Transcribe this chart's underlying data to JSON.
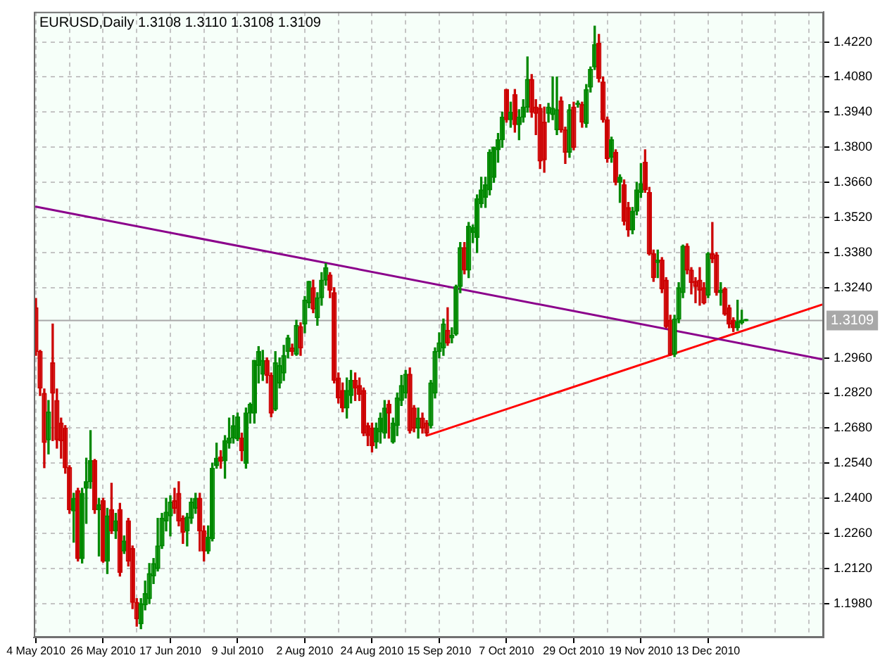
{
  "chart_data": {
    "type": "candlestick",
    "title": "EURUSD,Daily 1.3108 1.3110 1.3108 1.3109",
    "categories": [
      "4 May 2010",
      null,
      null,
      null,
      null,
      null,
      null,
      null,
      null,
      null,
      null,
      null,
      null,
      null,
      null,
      null,
      "26 May 2010",
      null,
      null,
      null,
      null,
      null,
      null,
      null,
      null,
      null,
      null,
      null,
      null,
      null,
      null,
      null,
      "17 Jun 2010",
      null,
      null,
      null,
      null,
      null,
      null,
      null,
      null,
      null,
      null,
      null,
      null,
      null,
      null,
      null,
      "9 Jul 2010",
      null,
      null,
      null,
      null,
      null,
      null,
      null,
      null,
      null,
      null,
      null,
      null,
      null,
      null,
      null,
      "2 Aug 2010",
      null,
      null,
      null,
      null,
      null,
      null,
      null,
      null,
      null,
      null,
      null,
      null,
      null,
      null,
      null,
      "24 Aug 2010",
      null,
      null,
      null,
      null,
      null,
      null,
      null,
      null,
      null,
      null,
      null,
      null,
      null,
      null,
      null,
      "15 Sep 2010",
      null,
      null,
      null,
      null,
      null,
      null,
      null,
      null,
      null,
      null,
      null,
      null,
      null,
      null,
      null,
      "7 Oct 2010",
      null,
      null,
      null,
      null,
      null,
      null,
      null,
      null,
      null,
      null,
      null,
      null,
      null,
      null,
      null,
      "29 Oct 2010",
      null,
      null,
      null,
      null,
      null,
      null,
      null,
      null,
      null,
      null,
      null,
      null,
      null,
      null,
      null,
      "19 Nov 2010",
      null,
      null,
      null,
      null,
      null,
      null,
      null,
      null,
      null,
      null,
      null,
      null,
      null,
      null,
      null,
      "13 Dec 2010",
      null,
      null,
      null,
      null,
      null,
      null,
      null,
      null,
      null,
      null,
      null,
      null,
      null,
      null,
      null,
      null,
      null,
      null,
      null,
      null,
      null,
      null,
      null,
      null,
      null,
      null,
      null
    ],
    "ohlc": [
      [
        1.316,
        1.3197,
        1.297,
        1.2985
      ],
      [
        1.2985,
        1.299,
        1.281,
        1.284
      ],
      [
        1.2818,
        1.2836,
        1.2522,
        1.2623
      ],
      [
        1.2633,
        1.279,
        1.2577,
        1.2744
      ],
      [
        1.294,
        1.3095,
        1.263,
        1.282
      ],
      [
        1.279,
        1.2836,
        1.26,
        1.2633
      ],
      [
        1.27,
        1.272,
        1.256,
        1.263
      ],
      [
        1.268,
        1.269,
        1.25,
        1.2522
      ],
      [
        1.2522,
        1.253,
        1.234,
        1.2355
      ],
      [
        1.235,
        1.242,
        1.2225,
        1.24
      ],
      [
        1.243,
        1.244,
        1.215,
        1.216
      ],
      [
        1.216,
        1.244,
        1.2142,
        1.242
      ],
      [
        1.244,
        1.256,
        1.23,
        1.2466
      ],
      [
        1.2466,
        1.267,
        1.244,
        1.255
      ],
      [
        1.255,
        1.2555,
        1.234,
        1.2355
      ],
      [
        1.2355,
        1.24,
        1.217,
        1.2375
      ],
      [
        1.239,
        1.24,
        1.2145,
        1.215
      ],
      [
        1.215,
        1.236,
        1.21,
        1.233
      ],
      [
        1.2355,
        1.246,
        1.226,
        1.227
      ],
      [
        1.227,
        1.234,
        1.224,
        1.231
      ],
      [
        1.2355,
        1.238,
        1.209,
        1.2105
      ],
      [
        1.219,
        1.225,
        1.218,
        1.223
      ],
      [
        1.231,
        1.232,
        1.213,
        1.215
      ],
      [
        1.22,
        1.221,
        1.196,
        1.1985
      ],
      [
        1.1985,
        1.2,
        1.189,
        1.192
      ],
      [
        1.19,
        1.2,
        1.188,
        1.198
      ],
      [
        1.1975,
        1.207,
        1.1955,
        1.202
      ],
      [
        1.2,
        1.214,
        1.198,
        1.21
      ],
      [
        1.209,
        1.216,
        1.206,
        1.214
      ],
      [
        1.212,
        1.232,
        1.211,
        1.221
      ],
      [
        1.221,
        1.234,
        1.22,
        1.232
      ],
      [
        1.231,
        1.24,
        1.227,
        1.2345
      ],
      [
        1.233,
        1.241,
        1.225,
        1.2385
      ],
      [
        1.239,
        1.244,
        1.234,
        1.236
      ],
      [
        1.242,
        1.2466,
        1.229,
        1.231
      ],
      [
        1.232,
        1.233,
        1.222,
        1.2265
      ],
      [
        1.227,
        1.234,
        1.221,
        1.2325
      ],
      [
        1.232,
        1.24,
        1.23,
        1.2385
      ],
      [
        1.236,
        1.242,
        1.234,
        1.24
      ],
      [
        1.24,
        1.242,
        1.219,
        1.227
      ],
      [
        1.227,
        1.229,
        1.215,
        1.219
      ],
      [
        1.219,
        1.229,
        1.218,
        1.2245
      ],
      [
        1.224,
        1.254,
        1.223,
        1.252
      ],
      [
        1.253,
        1.262,
        1.252,
        1.256
      ],
      [
        1.2565,
        1.259,
        1.252,
        1.2548
      ],
      [
        1.255,
        1.265,
        1.248,
        1.263
      ],
      [
        1.262,
        1.272,
        1.26,
        1.264
      ],
      [
        1.264,
        1.273,
        1.262,
        1.269
      ],
      [
        1.2637,
        1.274,
        1.263,
        1.2725
      ],
      [
        1.264,
        1.266,
        1.255,
        1.259
      ],
      [
        1.254,
        1.276,
        1.252,
        1.274
      ],
      [
        1.274,
        1.278,
        1.27,
        1.2775
      ],
      [
        1.274,
        1.295,
        1.27,
        1.295
      ],
      [
        1.293,
        1.3005,
        1.286,
        1.2985
      ],
      [
        1.2895,
        1.299,
        1.287,
        1.295
      ],
      [
        1.295,
        1.296,
        1.286,
        1.289
      ],
      [
        1.289,
        1.29,
        1.2725,
        1.274
      ],
      [
        1.2755,
        1.2985,
        1.275,
        1.294
      ],
      [
        1.286,
        1.296,
        1.284,
        1.293
      ],
      [
        1.29,
        1.301,
        1.287,
        1.297
      ],
      [
        1.2985,
        1.305,
        1.296,
        1.304
      ],
      [
        1.3,
        1.3015,
        1.297,
        1.2985
      ],
      [
        1.2975,
        1.311,
        1.297,
        1.309
      ],
      [
        1.3085,
        1.31,
        1.297,
        1.3
      ],
      [
        1.3095,
        1.3205,
        1.306,
        1.319
      ],
      [
        1.318,
        1.3265,
        1.316,
        1.3265
      ],
      [
        1.324,
        1.327,
        1.314,
        1.3155
      ],
      [
        1.312,
        1.322,
        1.309,
        1.32
      ],
      [
        1.32,
        1.33,
        1.317,
        1.327
      ],
      [
        1.327,
        1.3336,
        1.325,
        1.332
      ],
      [
        1.329,
        1.33,
        1.32,
        1.323
      ],
      [
        1.322,
        1.324,
        1.286,
        1.287
      ],
      [
        1.288,
        1.29,
        1.278,
        1.28
      ],
      [
        1.283,
        1.286,
        1.2745,
        1.276
      ],
      [
        1.276,
        1.288,
        1.272,
        1.283
      ],
      [
        1.281,
        1.291,
        1.278,
        1.287
      ],
      [
        1.287,
        1.29,
        1.279,
        1.284
      ],
      [
        1.285,
        1.288,
        1.279,
        1.2815
      ],
      [
        1.283,
        1.284,
        1.265,
        1.266
      ],
      [
        1.269,
        1.27,
        1.261,
        1.265
      ],
      [
        1.268,
        1.27,
        1.2585,
        1.261
      ],
      [
        1.2625,
        1.27,
        1.26,
        1.268
      ],
      [
        1.2665,
        1.274,
        1.262,
        1.272
      ],
      [
        1.266,
        1.279,
        1.264,
        1.276
      ],
      [
        1.2775,
        1.279,
        1.264,
        1.274
      ],
      [
        1.2625,
        1.272,
        1.262,
        1.27
      ],
      [
        1.269,
        1.282,
        1.265,
        1.28
      ],
      [
        1.279,
        1.289,
        1.277,
        1.285
      ],
      [
        1.282,
        1.291,
        1.28,
        1.2895
      ],
      [
        1.2895,
        1.292,
        1.266,
        1.267
      ],
      [
        1.276,
        1.277,
        1.2665,
        1.268
      ],
      [
        1.268,
        1.276,
        1.264,
        1.272
      ],
      [
        1.272,
        1.274,
        1.266,
        1.268
      ],
      [
        1.27,
        1.271,
        1.265,
        1.266
      ],
      [
        1.269,
        1.287,
        1.268,
        1.286
      ],
      [
        1.282,
        1.3,
        1.28,
        1.2985
      ],
      [
        1.2985,
        1.306,
        1.296,
        1.302
      ],
      [
        1.3,
        1.3115,
        1.297,
        1.3095
      ],
      [
        1.307,
        1.316,
        1.301,
        1.302
      ],
      [
        1.304,
        1.308,
        1.302,
        1.305
      ],
      [
        1.3055,
        1.325,
        1.305,
        1.3245
      ],
      [
        1.3245,
        1.342,
        1.322,
        1.34
      ],
      [
        1.34,
        1.342,
        1.3295,
        1.331
      ],
      [
        1.331,
        1.35,
        1.328,
        1.3485
      ],
      [
        1.346,
        1.349,
        1.342,
        1.348
      ],
      [
        1.344,
        1.361,
        1.338,
        1.3595
      ],
      [
        1.3575,
        1.368,
        1.356,
        1.363
      ],
      [
        1.36,
        1.368,
        1.356,
        1.365
      ],
      [
        1.363,
        1.379,
        1.361,
        1.378
      ],
      [
        1.368,
        1.38,
        1.366,
        1.38
      ],
      [
        1.379,
        1.3855,
        1.374,
        1.383
      ],
      [
        1.383,
        1.394,
        1.38,
        1.392
      ],
      [
        1.403,
        1.403,
        1.39,
        1.391
      ],
      [
        1.391,
        1.398,
        1.388,
        1.394
      ],
      [
        1.401,
        1.403,
        1.386,
        1.389
      ],
      [
        1.389,
        1.395,
        1.383,
        1.392
      ],
      [
        1.392,
        1.399,
        1.39,
        1.396
      ],
      [
        1.396,
        1.416,
        1.394,
        1.407
      ],
      [
        1.407,
        1.409,
        1.392,
        1.394
      ],
      [
        1.396,
        1.399,
        1.385,
        1.3935
      ],
      [
        1.3955,
        1.397,
        1.3715,
        1.3745
      ],
      [
        1.39,
        1.396,
        1.37,
        1.375
      ],
      [
        1.3935,
        1.3975,
        1.39,
        1.396
      ],
      [
        1.393,
        1.408,
        1.391,
        1.3955
      ],
      [
        1.387,
        1.408,
        1.385,
        1.395
      ],
      [
        1.3985,
        1.4,
        1.386,
        1.387
      ],
      [
        1.387,
        1.388,
        1.3735,
        1.378
      ],
      [
        1.378,
        1.397,
        1.376,
        1.395
      ],
      [
        1.396,
        1.398,
        1.379,
        1.38
      ],
      [
        1.397,
        1.3985,
        1.396,
        1.3975
      ],
      [
        1.397,
        1.398,
        1.388,
        1.39
      ],
      [
        1.3895,
        1.405,
        1.388,
        1.403
      ],
      [
        1.404,
        1.412,
        1.402,
        1.411
      ],
      [
        1.412,
        1.4283,
        1.411,
        1.421
      ],
      [
        1.4215,
        1.425,
        1.406,
        1.4075
      ],
      [
        1.406,
        1.408,
        1.39,
        1.391
      ],
      [
        1.391,
        1.392,
        1.374,
        1.3755
      ],
      [
        1.376,
        1.384,
        1.374,
        1.383
      ],
      [
        1.378,
        1.379,
        1.365,
        1.366
      ],
      [
        1.366,
        1.369,
        1.358,
        1.368
      ],
      [
        1.365,
        1.367,
        1.349,
        1.3505
      ],
      [
        1.356,
        1.358,
        1.3445,
        1.347
      ],
      [
        1.347,
        1.356,
        1.3455,
        1.3545
      ],
      [
        1.3545,
        1.366,
        1.353,
        1.363
      ],
      [
        1.362,
        1.3735,
        1.36,
        1.3655
      ],
      [
        1.374,
        1.379,
        1.362,
        1.363
      ],
      [
        1.362,
        1.364,
        1.337,
        1.3375
      ],
      [
        1.3375,
        1.339,
        1.3265,
        1.328
      ],
      [
        1.334,
        1.339,
        1.328,
        1.335
      ],
      [
        1.335,
        1.336,
        1.322,
        1.3235
      ],
      [
        1.327,
        1.328,
        1.308,
        1.3085
      ],
      [
        1.311,
        1.313,
        1.297,
        1.2975
      ],
      [
        1.2975,
        1.313,
        1.2965,
        1.3115
      ],
      [
        1.3115,
        1.326,
        1.31,
        1.324
      ],
      [
        1.322,
        1.341,
        1.32,
        1.3405
      ],
      [
        1.3405,
        1.3415,
        1.3295,
        1.331
      ],
      [
        1.331,
        1.332,
        1.3215,
        1.326
      ],
      [
        1.3265,
        1.328,
        1.318,
        1.3245
      ],
      [
        1.327,
        1.332,
        1.317,
        1.323
      ],
      [
        1.324,
        1.326,
        1.3175,
        1.318
      ],
      [
        1.321,
        1.338,
        1.32,
        1.3375
      ],
      [
        1.3375,
        1.35,
        1.334,
        1.3355
      ],
      [
        1.337,
        1.338,
        1.321,
        1.322
      ],
      [
        1.322,
        1.326,
        1.317,
        1.323
      ],
      [
        1.3235,
        1.324,
        1.313,
        1.3135
      ],
      [
        1.316,
        1.317,
        1.308,
        1.3095
      ],
      [
        1.311,
        1.312,
        1.3065,
        1.308
      ],
      [
        1.308,
        1.319,
        1.307,
        1.3105
      ],
      [
        1.31,
        1.315,
        1.3095,
        1.311
      ],
      [
        1.3108,
        1.311,
        1.3108,
        1.3109
      ],
      null,
      null,
      null,
      null,
      null,
      null,
      null,
      null,
      null,
      null,
      null,
      null,
      null,
      null,
      null,
      null,
      null,
      null
    ],
    "series": [
      {
        "type": "line",
        "color": "#8b008b",
        "values": [
          1.3563,
          null,
          null,
          null,
          null,
          null,
          null,
          null,
          null,
          null,
          null,
          null,
          null,
          null,
          null,
          null,
          null,
          null,
          null,
          null,
          null,
          null,
          null,
          null,
          null,
          null,
          null,
          null,
          null,
          null,
          null,
          null,
          null,
          null,
          null,
          null,
          null,
          null,
          null,
          null,
          null,
          null,
          null,
          null,
          null,
          null,
          null,
          null,
          null,
          null,
          null,
          null,
          null,
          null,
          null,
          null,
          null,
          null,
          null,
          null,
          null,
          null,
          null,
          null,
          null,
          null,
          null,
          null,
          null,
          null,
          null,
          null,
          null,
          null,
          null,
          null,
          null,
          null,
          null,
          null,
          null,
          null,
          null,
          null,
          null,
          null,
          null,
          null,
          null,
          null,
          null,
          null,
          null,
          null,
          null,
          null,
          null,
          null,
          null,
          null,
          null,
          null,
          null,
          null,
          null,
          null,
          null,
          null,
          null,
          null,
          null,
          null,
          null,
          null,
          null,
          null,
          null,
          null,
          null,
          null,
          null,
          null,
          null,
          null,
          null,
          null,
          null,
          null,
          null,
          null,
          null,
          null,
          null,
          null,
          null,
          null,
          null,
          null,
          null,
          null,
          null,
          null,
          null,
          null,
          null,
          null,
          null,
          null,
          null,
          null,
          null,
          null,
          null,
          null,
          null,
          null,
          null,
          null,
          null,
          null,
          null,
          null,
          null,
          null,
          null,
          null,
          null,
          null,
          null,
          null,
          null,
          null,
          null,
          null,
          null,
          null,
          null,
          null,
          null,
          null,
          null,
          null,
          null,
          null,
          null,
          null,
          null,
          1.2955
        ]
      },
      {
        "type": "line",
        "color": "#ff0000",
        "values": [
          null,
          null,
          null,
          null,
          null,
          null,
          null,
          null,
          null,
          null,
          null,
          null,
          null,
          null,
          null,
          null,
          null,
          null,
          null,
          null,
          null,
          null,
          null,
          null,
          null,
          null,
          null,
          null,
          null,
          null,
          null,
          null,
          null,
          null,
          null,
          null,
          null,
          null,
          null,
          null,
          null,
          null,
          null,
          null,
          null,
          null,
          null,
          null,
          null,
          null,
          null,
          null,
          null,
          null,
          null,
          null,
          null,
          null,
          null,
          null,
          null,
          null,
          null,
          null,
          null,
          null,
          null,
          null,
          null,
          null,
          null,
          null,
          null,
          null,
          null,
          null,
          null,
          null,
          null,
          null,
          null,
          null,
          null,
          null,
          null,
          null,
          null,
          null,
          null,
          null,
          null,
          null,
          null,
          1.265,
          null,
          null,
          null,
          null,
          null,
          null,
          null,
          null,
          null,
          null,
          null,
          null,
          null,
          null,
          null,
          null,
          null,
          null,
          null,
          null,
          null,
          null,
          null,
          null,
          null,
          null,
          null,
          null,
          null,
          null,
          null,
          null,
          null,
          null,
          null,
          null,
          null,
          null,
          null,
          null,
          null,
          null,
          null,
          null,
          null,
          null,
          null,
          null,
          null,
          null,
          null,
          null,
          null,
          null,
          null,
          null,
          null,
          null,
          null,
          null,
          null,
          null,
          null,
          null,
          null,
          null,
          null,
          null,
          null,
          null,
          null,
          null,
          null,
          null,
          null,
          null,
          null,
          null,
          null,
          null,
          null,
          null,
          null,
          null,
          null,
          null,
          null,
          null,
          null,
          null,
          null,
          null,
          null,
          1.3172
        ]
      }
    ],
    "ylim": [
      1.1845,
      1.434
    ],
    "yticks": [
      {
        "value": 1.198,
        "label": "1.1980"
      },
      {
        "value": 1.212,
        "label": "1.2120"
      },
      {
        "value": 1.226,
        "label": "1.2260"
      },
      {
        "value": 1.24,
        "label": "1.2400"
      },
      {
        "value": 1.254,
        "label": "1.2540"
      },
      {
        "value": 1.268,
        "label": "1.2680"
      },
      {
        "value": 1.282,
        "label": "1.2820"
      },
      {
        "value": 1.296,
        "label": "1.2960"
      },
      {
        "value": 1.324,
        "label": "1.3240"
      },
      {
        "value": 1.338,
        "label": "1.3380"
      },
      {
        "value": 1.352,
        "label": "1.3520"
      },
      {
        "value": 1.366,
        "label": "1.3660"
      },
      {
        "value": 1.38,
        "label": "1.3800"
      },
      {
        "value": 1.394,
        "label": "1.3940"
      },
      {
        "value": 1.408,
        "label": "1.4080"
      },
      {
        "value": 1.422,
        "label": "1.4220"
      }
    ],
    "ref_lines": [
      {
        "axis": "y",
        "value": 1.3109,
        "label": "1.3109",
        "color": "#a8a8a8"
      }
    ],
    "grid": true
  }
}
